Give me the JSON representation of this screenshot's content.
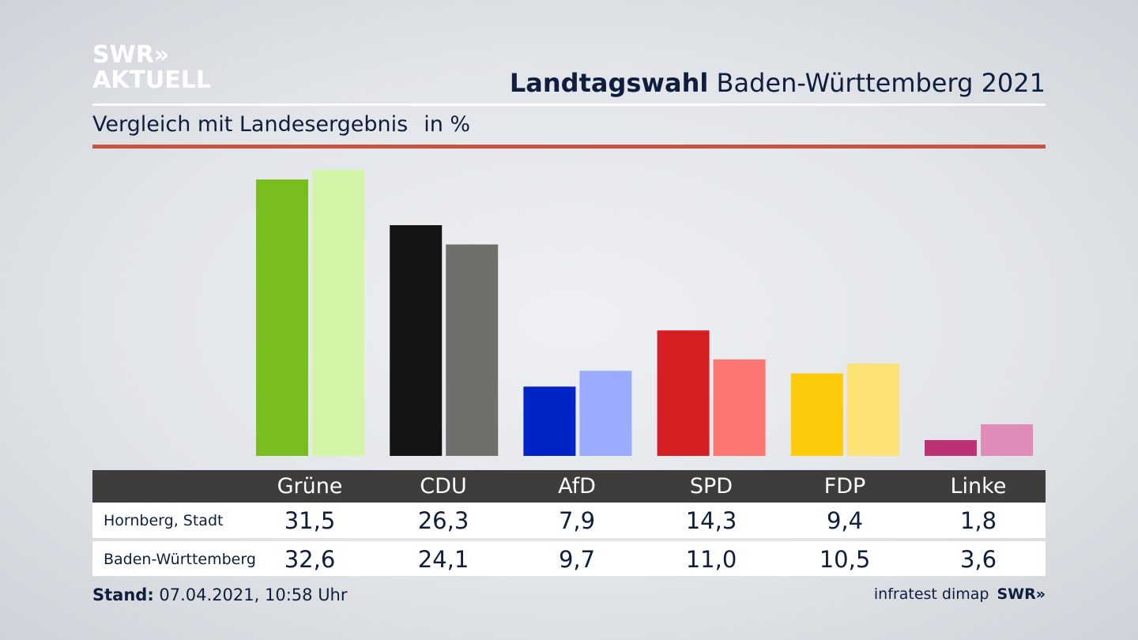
{
  "logo": {
    "line1": "SWR»",
    "line2": "AKTUELL"
  },
  "header": {
    "title_bold": "Landtagswahl",
    "title_rest": "Baden-Württemberg 2021",
    "subtitle": "Vergleich mit Landesergebnis",
    "unit": "in %"
  },
  "colors": {
    "accent_rule": "#c9533e",
    "table_header": "#3e3d3b",
    "text": "#0f1e3d"
  },
  "chart_data": {
    "type": "bar",
    "title": "",
    "categories": [
      "Grüne",
      "CDU",
      "AfD",
      "SPD",
      "FDP",
      "Linke"
    ],
    "series": [
      {
        "name": "Hornberg, Stadt",
        "values": [
          31.5,
          26.3,
          7.9,
          14.3,
          9.4,
          1.8
        ]
      },
      {
        "name": "Baden-Württemberg",
        "values": [
          32.6,
          24.1,
          9.7,
          11.0,
          10.5,
          3.6
        ]
      }
    ],
    "colors": [
      [
        "#78be1e",
        "#d4f5a8"
      ],
      [
        "#141414",
        "#706f6c"
      ],
      [
        "#0023c8",
        "#9aaafc"
      ],
      [
        "#d61f23",
        "#fe7672"
      ],
      [
        "#fecb0b",
        "#fee175"
      ],
      [
        "#bc3275",
        "#e18bb9"
      ]
    ],
    "ylim": [
      0,
      32.6
    ],
    "xlabel": "",
    "ylabel": ""
  },
  "table": {
    "headers": [
      "Grüne",
      "CDU",
      "AfD",
      "SPD",
      "FDP",
      "Linke"
    ],
    "rows": [
      {
        "label": "Hornberg, Stadt",
        "values": [
          "31,5",
          "26,3",
          "7,9",
          "14,3",
          "9,4",
          "1,8"
        ]
      },
      {
        "label": "Baden-Württemberg",
        "values": [
          "32,6",
          "24,1",
          "9,7",
          "11,0",
          "10,5",
          "3,6"
        ]
      }
    ]
  },
  "footer": {
    "stand_label": "Stand:",
    "stand_value": "07.04.2021, 10:58 Uhr",
    "source": "infratest dimap",
    "brand": "SWR»"
  }
}
